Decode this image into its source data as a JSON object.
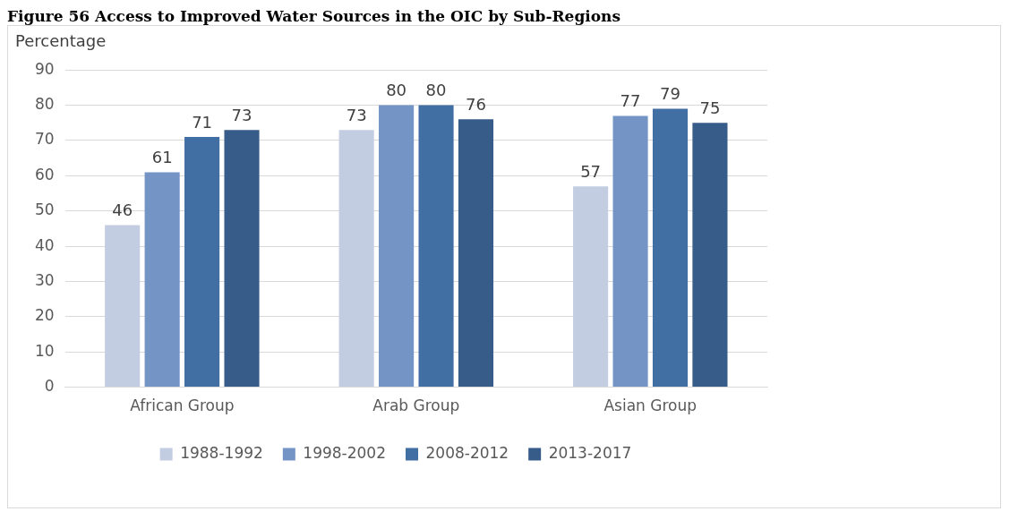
{
  "chart_data": {
    "type": "bar",
    "title": "Figure 56 Access to Improved Water Sources in the OIC by Sub-Regions",
    "ylabel": "Percentage",
    "categories": [
      "African Group",
      "Arab Group",
      "Asian Group"
    ],
    "series": [
      {
        "name": "1988-1992",
        "color": "#c3cde2",
        "values": [
          46,
          73,
          57
        ]
      },
      {
        "name": "1998-2002",
        "color": "#7394c5",
        "values": [
          61,
          80,
          77
        ]
      },
      {
        "name": "2008-2012",
        "color": "#416ea3",
        "values": [
          71,
          80,
          79
        ]
      },
      {
        "name": "2013-2017",
        "color": "#375c8a",
        "values": [
          73,
          76,
          75
        ]
      }
    ],
    "ylim": [
      0,
      90
    ],
    "yticks": [
      0,
      10,
      20,
      30,
      40,
      50,
      60,
      70,
      80,
      90
    ],
    "grid": "y",
    "legend": "bottom",
    "data_labels": true
  }
}
